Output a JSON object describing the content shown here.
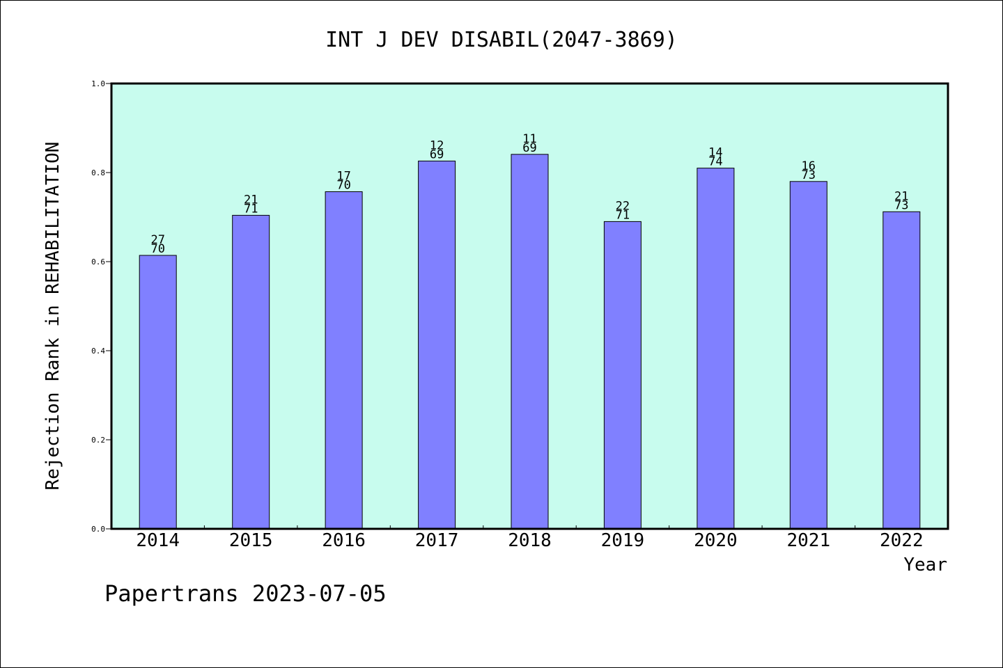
{
  "chart_data": {
    "type": "bar",
    "title": "INT J DEV DISABIL(2047-3869)",
    "xlabel": "Year",
    "ylabel": "Rejection Rank in REHABILITATION",
    "ylim": [
      0,
      1.0
    ],
    "yticks": [
      "0.0",
      "0.2",
      "0.4",
      "0.6",
      "0.8",
      "1.0"
    ],
    "categories": [
      "2014",
      "2015",
      "2016",
      "2017",
      "2018",
      "2019",
      "2020",
      "2021",
      "2022"
    ],
    "values": [
      0.614,
      0.704,
      0.757,
      0.826,
      0.841,
      0.69,
      0.81,
      0.78,
      0.712
    ],
    "labels_top": [
      "27",
      "21",
      "17",
      "12",
      "11",
      "22",
      "14",
      "16",
      "21"
    ],
    "labels_bottom": [
      "70",
      "71",
      "70",
      "69",
      "69",
      "71",
      "74",
      "73",
      "73"
    ],
    "grid": false,
    "legend": "none"
  },
  "footer": "Papertrans 2023-07-05",
  "colors": {
    "plot_background": "#c8fcee",
    "bar_fill": "#8080ff",
    "axis": "#000000"
  }
}
